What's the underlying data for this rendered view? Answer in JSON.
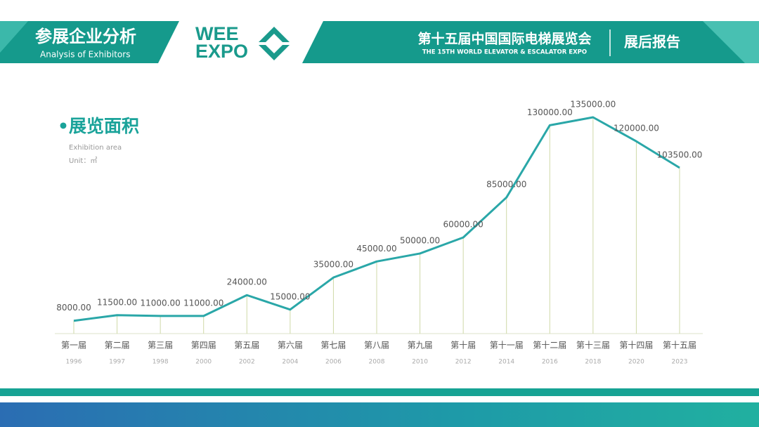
{
  "header": {
    "section_title": "参展企业分析",
    "section_subtitle": "Analysis of Exhibitors",
    "logo_line1": "WEE",
    "logo_line2": "EXPO",
    "event_title": "第十五届中国国际电梯展览会",
    "event_subtitle": "THE 15TH WORLD ELEVATOR & ESCALATOR EXPO",
    "report": "展后报告"
  },
  "chart_data": {
    "type": "line",
    "title": "•展览面积",
    "subtitle": "Exhibition area",
    "unit": "Unit：㎡",
    "categories": [
      "第一届",
      "第二届",
      "第三届",
      "第四届",
      "第五届",
      "第六届",
      "第七届",
      "第八届",
      "第九届",
      "第十届",
      "第十一届",
      "第十二届",
      "第十三届",
      "第十四届",
      "第十五届"
    ],
    "years": [
      "1996",
      "1997",
      "1998",
      "2000",
      "2002",
      "2004",
      "2006",
      "2008",
      "2010",
      "2012",
      "2014",
      "2016",
      "2018",
      "2020",
      "2023"
    ],
    "values": [
      8000,
      11500,
      11000,
      11000,
      24000,
      15000,
      35000,
      45000,
      50000,
      60000,
      85000,
      130000,
      135000,
      120000,
      103500
    ],
    "value_labels": [
      "8000.00",
      "11500.00",
      "11000.00",
      "11000.00",
      "24000.00",
      "15000.00",
      "35000.00",
      "45000.00",
      "50000.00",
      "60000.00",
      "85000.00",
      "130000.00",
      "135000.00",
      "120000.00",
      "103500.00"
    ],
    "color": "#2aa7a8",
    "drop_line_color": "#cfd9a8"
  }
}
